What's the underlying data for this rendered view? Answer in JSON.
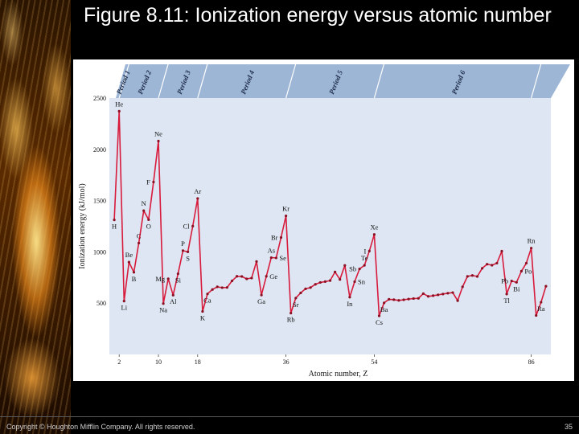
{
  "slide": {
    "title": "Figure 8.11: Ionization energy versus atomic number",
    "copyright": "Copyright © Houghton Mifflin Company. All rights reserved.",
    "page_number": "35"
  },
  "colors": {
    "line": "#d81b3c",
    "plot_bg": "#dde6f2",
    "band": "#9db6d6"
  },
  "chart_data": {
    "type": "line",
    "xlabel": "Atomic number, Z",
    "ylabel": "Ionization energy (kJ/mol)",
    "xlim": [
      0,
      90
    ],
    "ylim": [
      0,
      2500
    ],
    "xticks": [
      2,
      10,
      18,
      36,
      54,
      86
    ],
    "yticks": [
      500,
      1000,
      1500,
      2000,
      2500
    ],
    "periods": [
      {
        "label": "Period 1",
        "end": 2
      },
      {
        "label": "Period 2",
        "end": 10
      },
      {
        "label": "Period 3",
        "end": 18
      },
      {
        "label": "Period 4",
        "end": 36
      },
      {
        "label": "Period 5",
        "end": 54
      },
      {
        "label": "Period 6",
        "end": 86
      }
    ],
    "x": [
      1,
      2,
      3,
      4,
      5,
      6,
      7,
      8,
      9,
      10,
      11,
      12,
      13,
      14,
      15,
      16,
      17,
      18,
      19,
      20,
      21,
      22,
      23,
      24,
      25,
      26,
      27,
      28,
      29,
      30,
      31,
      32,
      33,
      34,
      35,
      36,
      37,
      38,
      39,
      40,
      41,
      42,
      43,
      44,
      45,
      46,
      47,
      48,
      49,
      50,
      51,
      52,
      53,
      54,
      55,
      56,
      57,
      58,
      59,
      60,
      61,
      62,
      63,
      64,
      65,
      66,
      67,
      68,
      69,
      70,
      71,
      72,
      73,
      74,
      75,
      76,
      77,
      78,
      79,
      80,
      81,
      82,
      83,
      84,
      85,
      86,
      87,
      88,
      89
    ],
    "values": [
      1312,
      2372,
      520,
      900,
      801,
      1086,
      1402,
      1314,
      1681,
      2081,
      496,
      738,
      578,
      787,
      1012,
      1000,
      1251,
      1521,
      419,
      590,
      633,
      659,
      651,
      653,
      717,
      762,
      760,
      737,
      745,
      906,
      579,
      762,
      944,
      941,
      1140,
      1351,
      403,
      550,
      600,
      640,
      652,
      684,
      702,
      710,
      720,
      804,
      731,
      868,
      558,
      709,
      834,
      869,
      1008,
      1170,
      376,
      503,
      538,
      534,
      527,
      533,
      540,
      545,
      547,
      593,
      566,
      573,
      581,
      589,
      597,
      603,
      524,
      659,
      761,
      770,
      760,
      840,
      880,
      870,
      890,
      1007,
      589,
      716,
      703,
      812,
      890,
      1037,
      380,
      509,
      665
    ],
    "labels": [
      {
        "z": 1,
        "text": "H",
        "pos": "below"
      },
      {
        "z": 2,
        "text": "He",
        "pos": "above"
      },
      {
        "z": 3,
        "text": "Li",
        "pos": "below"
      },
      {
        "z": 4,
        "text": "Be",
        "pos": "above"
      },
      {
        "z": 5,
        "text": "B",
        "pos": "below"
      },
      {
        "z": 6,
        "text": "C",
        "pos": "above"
      },
      {
        "z": 7,
        "text": "N",
        "pos": "above"
      },
      {
        "z": 8,
        "text": "O",
        "pos": "below"
      },
      {
        "z": 9,
        "text": "F",
        "pos": "left"
      },
      {
        "z": 10,
        "text": "Ne",
        "pos": "above"
      },
      {
        "z": 11,
        "text": "Na",
        "pos": "below"
      },
      {
        "z": 12,
        "text": "Mg",
        "pos": "left"
      },
      {
        "z": 13,
        "text": "Al",
        "pos": "below"
      },
      {
        "z": 14,
        "text": "Si",
        "pos": "below"
      },
      {
        "z": 15,
        "text": "P",
        "pos": "above"
      },
      {
        "z": 16,
        "text": "S",
        "pos": "below"
      },
      {
        "z": 17,
        "text": "Cl",
        "pos": "left"
      },
      {
        "z": 18,
        "text": "Ar",
        "pos": "above"
      },
      {
        "z": 19,
        "text": "K",
        "pos": "below"
      },
      {
        "z": 20,
        "text": "Ca",
        "pos": "below"
      },
      {
        "z": 31,
        "text": "Ga",
        "pos": "below"
      },
      {
        "z": 32,
        "text": "Ge",
        "pos": "right"
      },
      {
        "z": 33,
        "text": "As",
        "pos": "above"
      },
      {
        "z": 34,
        "text": "Se",
        "pos": "right"
      },
      {
        "z": 35,
        "text": "Br",
        "pos": "left"
      },
      {
        "z": 36,
        "text": "Kr",
        "pos": "above"
      },
      {
        "z": 37,
        "text": "Rb",
        "pos": "below"
      },
      {
        "z": 38,
        "text": "Sr",
        "pos": "below"
      },
      {
        "z": 49,
        "text": "In",
        "pos": "below"
      },
      {
        "z": 50,
        "text": "Sn",
        "pos": "right"
      },
      {
        "z": 51,
        "text": "Sb",
        "pos": "left"
      },
      {
        "z": 52,
        "text": "Te",
        "pos": "above"
      },
      {
        "z": 53,
        "text": "I",
        "pos": "left"
      },
      {
        "z": 54,
        "text": "Xe",
        "pos": "above"
      },
      {
        "z": 55,
        "text": "Cs",
        "pos": "below"
      },
      {
        "z": 56,
        "text": "Ba",
        "pos": "below"
      },
      {
        "z": 81,
        "text": "Tl",
        "pos": "below"
      },
      {
        "z": 82,
        "text": "Pb",
        "pos": "left"
      },
      {
        "z": 83,
        "text": "Bi",
        "pos": "below"
      },
      {
        "z": 84,
        "text": "Po",
        "pos": "right"
      },
      {
        "z": 86,
        "text": "Rn",
        "pos": "above"
      },
      {
        "z": 88,
        "text": "Ra",
        "pos": "below"
      }
    ]
  }
}
